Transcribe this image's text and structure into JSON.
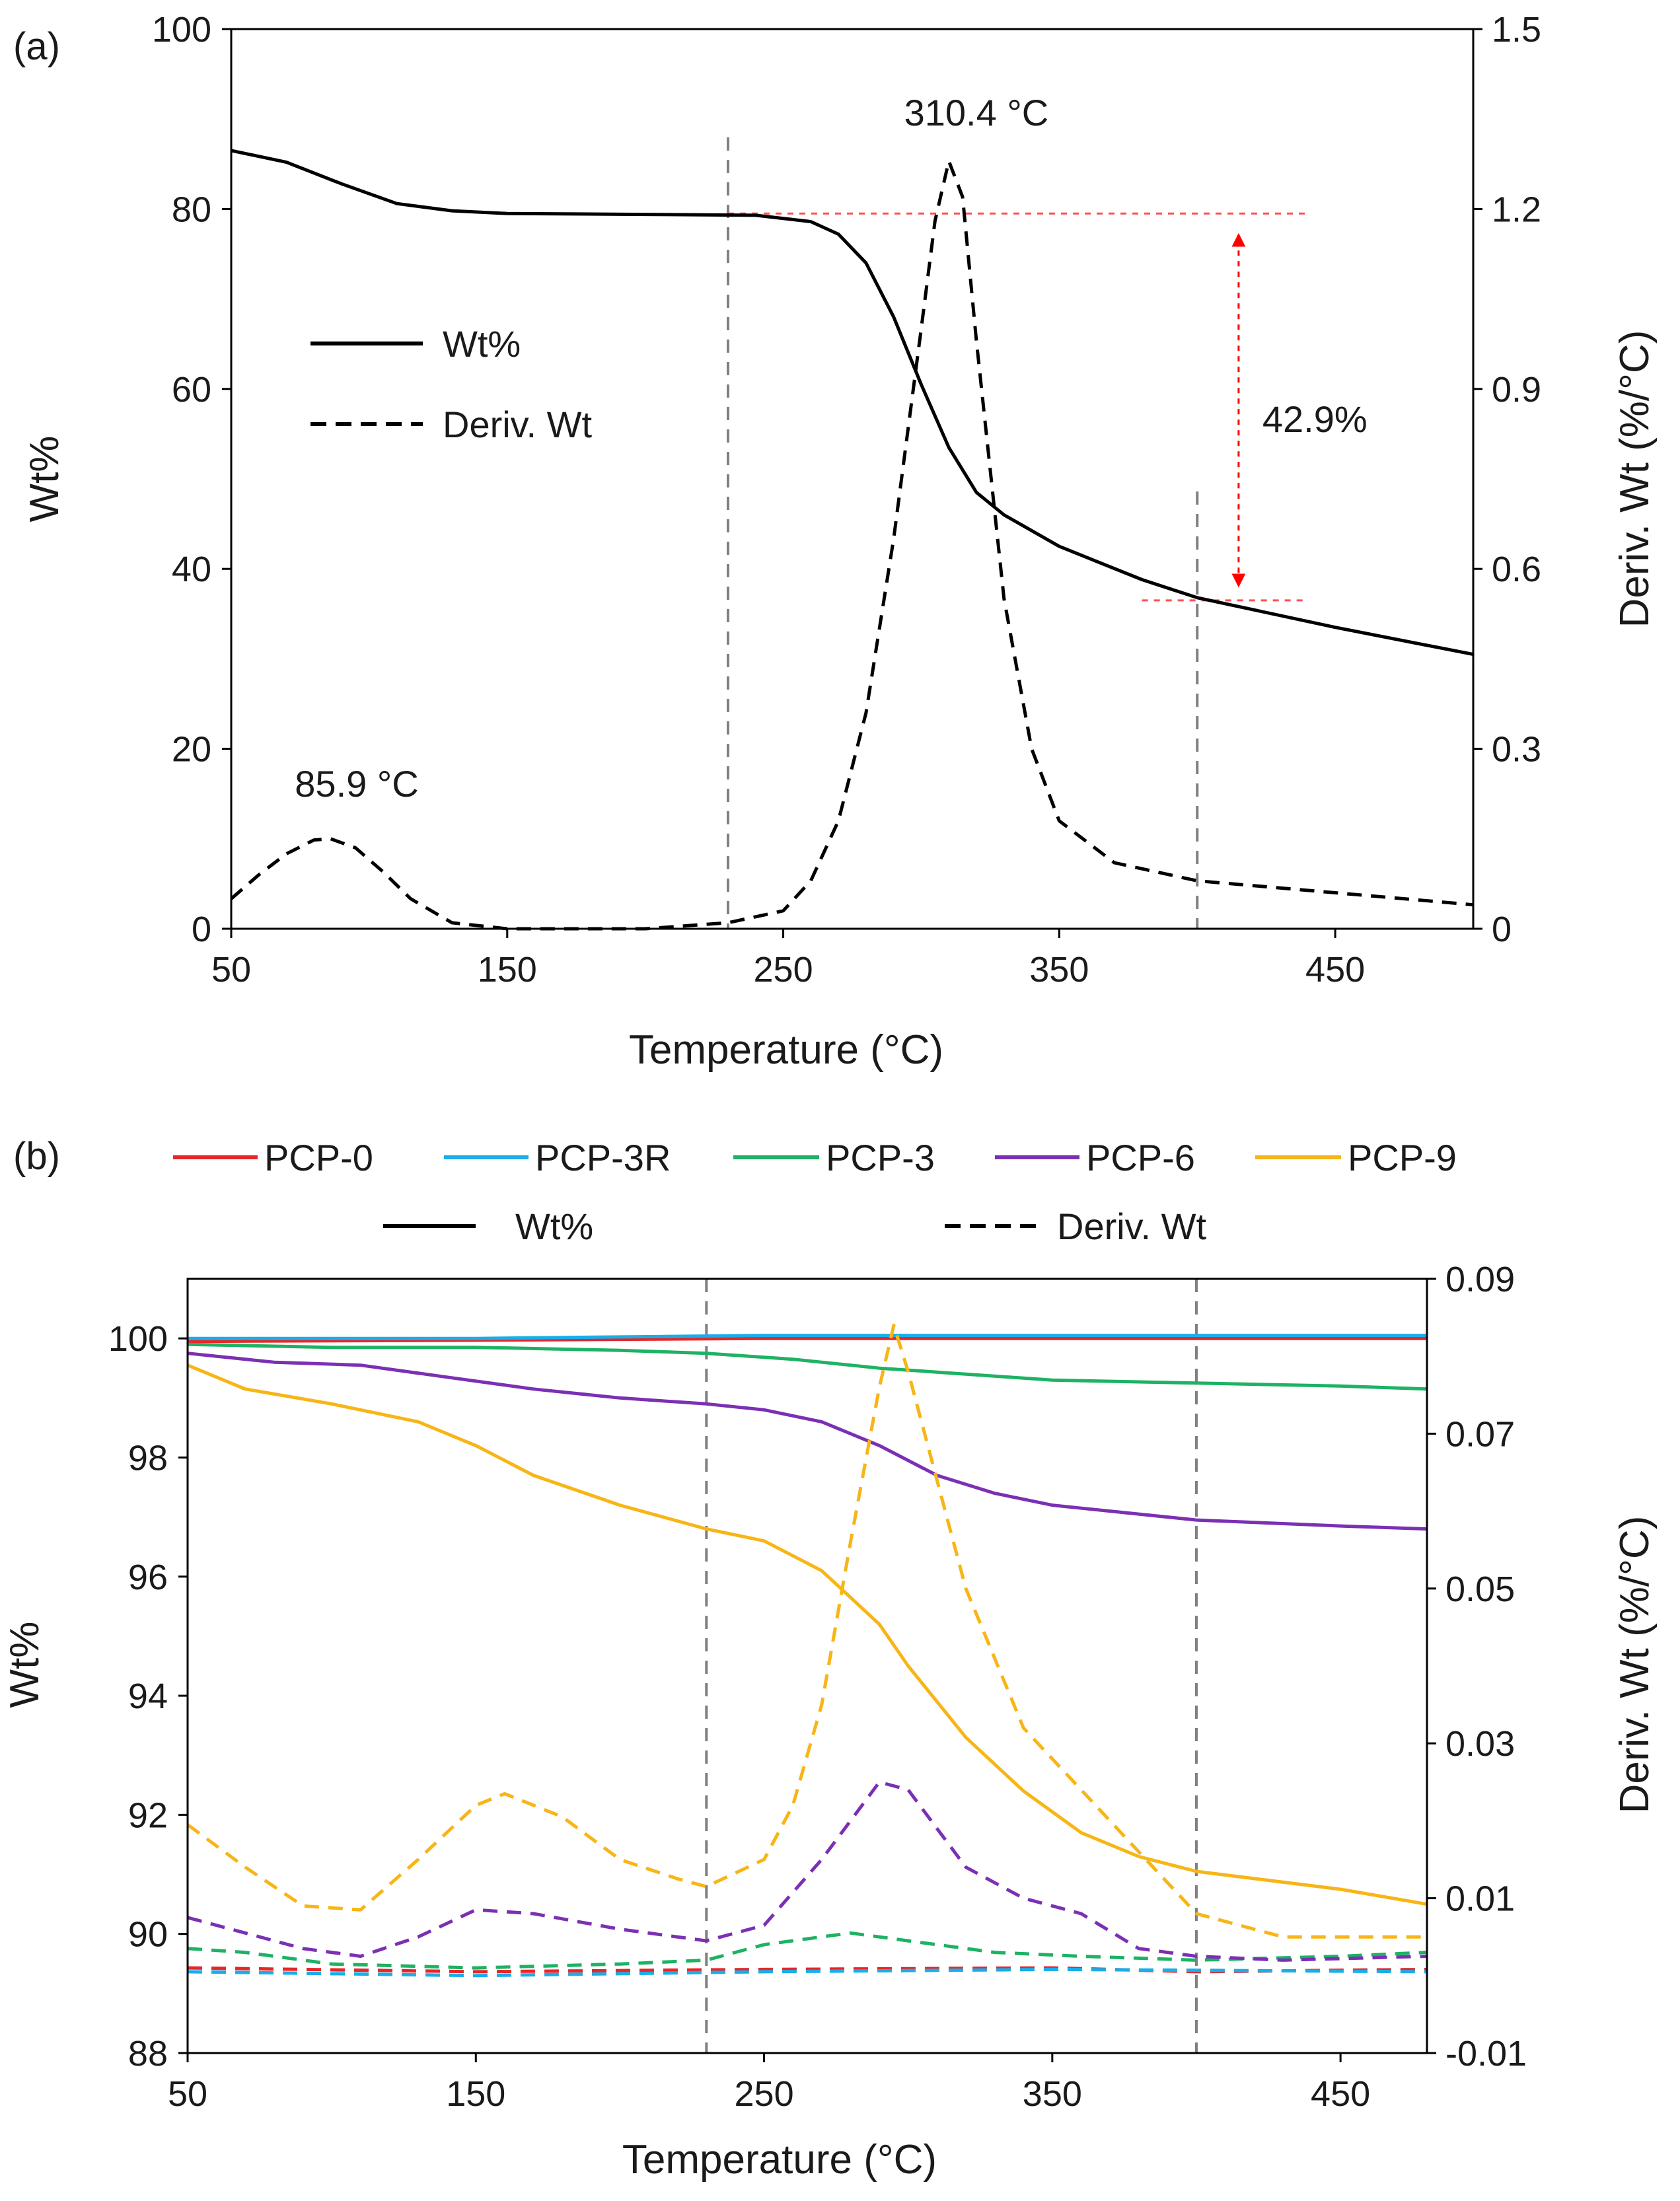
{
  "chart_data": [
    {
      "panel_label": "(a)",
      "type": "line",
      "xlabel": "Temperature (°C)",
      "ylabel": "Wt%",
      "y2label": "Deriv. Wt (%/°C)",
      "xlim": [
        50,
        500
      ],
      "ylim": [
        0,
        100
      ],
      "y2lim": [
        0,
        1.5
      ],
      "xticks": [
        "50",
        "150",
        "250",
        "350",
        "450"
      ],
      "yticks": [
        "0",
        "20",
        "40",
        "60",
        "80",
        "100"
      ],
      "y2ticks": [
        "0",
        "0.3",
        "0.6",
        "0.9",
        "1.2",
        "1.5"
      ],
      "legend": [
        {
          "name": "Wt%",
          "style": "solid"
        },
        {
          "name": "Deriv. Wt",
          "style": "dashed"
        }
      ],
      "series": [
        {
          "name": "Wt%",
          "axis": "left",
          "color": "#000000",
          "style": "solid",
          "x": [
            50,
            70,
            90,
            110,
            130,
            150,
            200,
            240,
            260,
            270,
            280,
            290,
            300,
            310,
            320,
            330,
            350,
            380,
            400,
            450,
            500
          ],
          "y": [
            86.5,
            85.2,
            82.8,
            80.6,
            79.8,
            79.5,
            79.4,
            79.3,
            78.6,
            77.2,
            74.0,
            68.0,
            60.5,
            53.5,
            48.5,
            46.0,
            42.5,
            38.8,
            36.8,
            33.5,
            30.5
          ]
        },
        {
          "name": "Deriv. Wt",
          "axis": "right",
          "color": "#000000",
          "style": "dashed",
          "x": [
            50,
            60,
            70,
            80,
            86,
            95,
            105,
            115,
            130,
            150,
            200,
            230,
            250,
            260,
            270,
            280,
            290,
            300,
            305,
            310,
            315,
            320,
            330,
            340,
            350,
            370,
            400,
            450,
            500
          ],
          "y": [
            0.05,
            0.09,
            0.125,
            0.148,
            0.15,
            0.135,
            0.095,
            0.05,
            0.01,
            0.0,
            0.0,
            0.01,
            0.03,
            0.08,
            0.18,
            0.36,
            0.65,
            1.0,
            1.18,
            1.28,
            1.22,
            0.98,
            0.55,
            0.3,
            0.18,
            0.11,
            0.08,
            0.06,
            0.04
          ]
        }
      ],
      "vlines": [
        230,
        400
      ],
      "hlines": [
        {
          "y": 79.5,
          "from": 230,
          "to": 440
        },
        {
          "y": 36.5,
          "from": 380,
          "to": 440
        }
      ],
      "arrow": {
        "x": 415,
        "y_from": 79.5,
        "y_to": 36.5,
        "label": "42.9%"
      },
      "annotations": [
        {
          "text": "310.4 °C",
          "x": 310.4
        },
        {
          "text": "85.9 °C",
          "x": 85.9
        }
      ]
    },
    {
      "panel_label": "(b)",
      "type": "line",
      "xlabel": "Temperature (°C)",
      "ylabel": "Wt%",
      "y2label": "Deriv. Wt (%/°C)",
      "xlim": [
        50,
        480
      ],
      "ylim": [
        88,
        101
      ],
      "y2lim": [
        -0.01,
        0.09
      ],
      "xticks": [
        "50",
        "150",
        "250",
        "350",
        "450"
      ],
      "yticks": [
        "88",
        "90",
        "92",
        "94",
        "96",
        "98",
        "100"
      ],
      "y2ticks": [
        "-0.01",
        "0.01",
        "0.03",
        "0.05",
        "0.07",
        "0.09"
      ],
      "legend": [
        {
          "name": "PCP-0",
          "color": "#e8262a"
        },
        {
          "name": "PCP-3R",
          "color": "#1aaee8"
        },
        {
          "name": "PCP-3",
          "color": "#1db264"
        },
        {
          "name": "PCP-6",
          "color": "#7b30b4"
        },
        {
          "name": "PCP-9",
          "color": "#f7b516"
        },
        {
          "name": "Wt%",
          "style": "solid"
        },
        {
          "name": "Deriv. Wt",
          "style": "dashed"
        }
      ],
      "series": [
        {
          "name": "PCP-0 Wt%",
          "axis": "left",
          "color": "#e8262a",
          "style": "solid",
          "x": [
            50,
            150,
            250,
            350,
            480
          ],
          "y": [
            99.95,
            99.97,
            100.0,
            100.0,
            100.0
          ]
        },
        {
          "name": "PCP-3R Wt%",
          "axis": "left",
          "color": "#1aaee8",
          "style": "solid",
          "x": [
            50,
            150,
            250,
            350,
            480
          ],
          "y": [
            100.0,
            100.0,
            100.05,
            100.05,
            100.05
          ]
        },
        {
          "name": "PCP-3 Wt%",
          "axis": "left",
          "color": "#1db264",
          "style": "solid",
          "x": [
            50,
            100,
            150,
            200,
            230,
            260,
            290,
            320,
            350,
            400,
            450,
            480
          ],
          "y": [
            99.9,
            99.85,
            99.85,
            99.8,
            99.75,
            99.65,
            99.5,
            99.4,
            99.3,
            99.25,
            99.2,
            99.15
          ]
        },
        {
          "name": "PCP-6 Wt%",
          "axis": "left",
          "color": "#7b30b4",
          "style": "solid",
          "x": [
            50,
            80,
            110,
            140,
            170,
            200,
            230,
            250,
            270,
            290,
            310,
            330,
            350,
            380,
            400,
            450,
            480
          ],
          "y": [
            99.75,
            99.6,
            99.55,
            99.35,
            99.15,
            99.0,
            98.9,
            98.8,
            98.6,
            98.2,
            97.7,
            97.4,
            97.2,
            97.05,
            96.95,
            96.85,
            96.8
          ]
        },
        {
          "name": "PCP-9 Wt%",
          "axis": "left",
          "color": "#f7b516",
          "style": "solid",
          "x": [
            50,
            70,
            100,
            130,
            150,
            170,
            200,
            230,
            250,
            270,
            290,
            300,
            320,
            340,
            360,
            380,
            400,
            450,
            480
          ],
          "y": [
            99.55,
            99.15,
            98.9,
            98.6,
            98.2,
            97.7,
            97.2,
            96.8,
            96.6,
            96.1,
            95.2,
            94.5,
            93.3,
            92.4,
            91.7,
            91.3,
            91.05,
            90.75,
            90.5
          ]
        },
        {
          "name": "PCP-0 Deriv. Wt",
          "axis": "right",
          "color": "#e8262a",
          "style": "dashed",
          "x": [
            50,
            150,
            250,
            350,
            400,
            480
          ],
          "y": [
            0.001,
            0.0005,
            0.0008,
            0.001,
            0.0005,
            0.0008
          ]
        },
        {
          "name": "PCP-3R Deriv. Wt",
          "axis": "right",
          "color": "#1aaee8",
          "style": "dashed",
          "x": [
            50,
            150,
            250,
            350,
            480
          ],
          "y": [
            0.0005,
            0.0,
            0.0005,
            0.0008,
            0.0005
          ]
        },
        {
          "name": "PCP-3 Deriv. Wt",
          "axis": "right",
          "color": "#1db264",
          "style": "dashed",
          "x": [
            50,
            70,
            100,
            150,
            200,
            230,
            250,
            280,
            300,
            330,
            360,
            400,
            450,
            480
          ],
          "y": [
            0.0035,
            0.003,
            0.0015,
            0.001,
            0.0015,
            0.002,
            0.004,
            0.0055,
            0.0045,
            0.003,
            0.0025,
            0.002,
            0.0025,
            0.003
          ]
        },
        {
          "name": "PCP-6 Deriv. Wt",
          "axis": "right",
          "color": "#7b30b4",
          "style": "dashed",
          "x": [
            50,
            70,
            90,
            110,
            130,
            150,
            170,
            200,
            230,
            250,
            270,
            290,
            300,
            320,
            340,
            360,
            380,
            400,
            430,
            480
          ],
          "y": [
            0.0075,
            0.0055,
            0.0035,
            0.0025,
            0.005,
            0.0085,
            0.008,
            0.006,
            0.0045,
            0.0065,
            0.015,
            0.025,
            0.024,
            0.014,
            0.01,
            0.008,
            0.0035,
            0.0025,
            0.002,
            0.0025
          ]
        },
        {
          "name": "PCP-9 Deriv. Wt",
          "axis": "right",
          "color": "#f7b516",
          "style": "dashed",
          "x": [
            50,
            70,
            90,
            110,
            130,
            150,
            160,
            180,
            200,
            220,
            230,
            250,
            260,
            270,
            280,
            290,
            295,
            300,
            310,
            320,
            340,
            360,
            380,
            400,
            430,
            480
          ],
          "y": [
            0.0195,
            0.014,
            0.009,
            0.0085,
            0.015,
            0.022,
            0.0235,
            0.0205,
            0.015,
            0.0125,
            0.0115,
            0.015,
            0.022,
            0.035,
            0.056,
            0.076,
            0.084,
            0.078,
            0.064,
            0.05,
            0.032,
            0.024,
            0.016,
            0.008,
            0.005,
            0.005
          ]
        }
      ],
      "vlines": [
        230,
        400
      ]
    }
  ]
}
